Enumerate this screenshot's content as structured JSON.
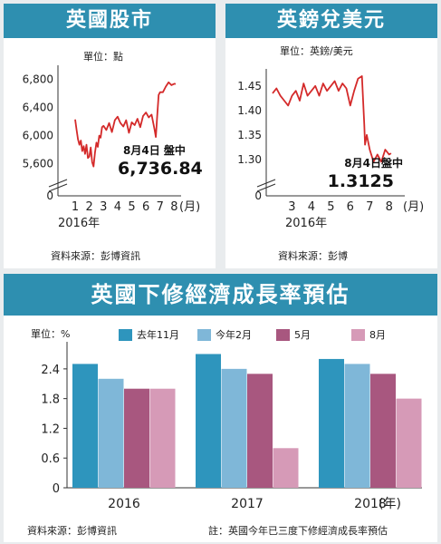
{
  "left": {
    "title": "英國股市",
    "unit": "單位：點",
    "yticks": [
      "6,800",
      "6,400",
      "6,000",
      "5,600",
      "0"
    ],
    "xticks": [
      "1",
      "2",
      "3",
      "4",
      "5",
      "6",
      "7",
      "8"
    ],
    "x_unit": "(月)",
    "year": "2016年",
    "annot_date": "8月4日  盤中",
    "annot_value": "6,736.84",
    "source": "資料來源：彭博資訊"
  },
  "right": {
    "title": "英鎊兌美元",
    "unit": "單位：英鎊/美元",
    "yticks": [
      "1.45",
      "1.40",
      "1.35",
      "1.30",
      "0"
    ],
    "xticks": [
      "3",
      "4",
      "5",
      "6",
      "7",
      "8"
    ],
    "x_unit": "(月)",
    "year": "2016年",
    "annot_date": "8月4日盤中",
    "annot_value": "1.3125",
    "source": "資料來源：彭博"
  },
  "bottom": {
    "title": "英國下修經濟成長率預估",
    "unit": "單位：%",
    "x_unit": "(年)",
    "source": "資料來源：彭博資訊",
    "note": "註：英國今年已三度下修經濟成長率預估"
  },
  "colors": {
    "header": "#2e8fb0",
    "line": "#d42a2a",
    "s1": "#2e95bd",
    "s2": "#7fb7d8",
    "s3": "#a8577f",
    "s4": "#d69ab7"
  },
  "chart_data": [
    {
      "type": "line",
      "title": "英國股市",
      "ylabel": "單位：點",
      "xlabel": "(月)",
      "ylim": [
        5400,
        6900
      ],
      "x_range": [
        1,
        8.1
      ],
      "x": [
        1.0,
        1.1,
        1.2,
        1.3,
        1.4,
        1.5,
        1.6,
        1.7,
        1.8,
        1.9,
        2.0,
        2.1,
        2.2,
        2.3,
        2.4,
        2.5,
        2.6,
        2.7,
        2.8,
        2.9,
        3.0,
        3.2,
        3.4,
        3.6,
        3.8,
        4.0,
        4.2,
        4.4,
        4.6,
        4.8,
        5.0,
        5.2,
        5.4,
        5.6,
        5.8,
        6.0,
        6.2,
        6.4,
        6.6,
        6.7,
        6.8,
        6.9,
        7.0,
        7.2,
        7.4,
        7.6,
        7.8,
        8.0,
        8.1
      ],
      "series": [
        {
          "values": [
            6230,
            6080,
            5950,
            5870,
            5930,
            5780,
            5850,
            5740,
            5870,
            5680,
            5700,
            5830,
            5620,
            5560,
            5760,
            5900,
            5840,
            6000,
            5970,
            6120,
            6140,
            6080,
            6180,
            6050,
            6220,
            6270,
            6180,
            6130,
            6220,
            6040,
            6190,
            6150,
            6240,
            6120,
            6280,
            6330,
            6260,
            6300,
            6100,
            5980,
            6300,
            6580,
            6620,
            6620,
            6700,
            6760,
            6720,
            6740,
            6737
          ]
        }
      ]
    },
    {
      "type": "line",
      "title": "英鎊兌美元",
      "ylabel": "單位：英鎊/美元",
      "xlabel": "(月)",
      "ylim": [
        1.27,
        1.47
      ],
      "x_range": [
        2,
        8.2
      ],
      "x": [
        2.0,
        2.2,
        2.4,
        2.6,
        2.8,
        3.0,
        3.2,
        3.4,
        3.6,
        3.8,
        4.0,
        4.2,
        4.4,
        4.6,
        4.8,
        5.0,
        5.2,
        5.4,
        5.6,
        5.8,
        6.0,
        6.2,
        6.4,
        6.6,
        6.72,
        6.76,
        6.85,
        7.0,
        7.2,
        7.4,
        7.6,
        7.8,
        8.0,
        8.1
      ],
      "series": [
        {
          "values": [
            1.435,
            1.445,
            1.43,
            1.42,
            1.41,
            1.43,
            1.44,
            1.42,
            1.455,
            1.43,
            1.44,
            1.45,
            1.43,
            1.455,
            1.44,
            1.45,
            1.46,
            1.44,
            1.455,
            1.445,
            1.41,
            1.44,
            1.465,
            1.47,
            1.37,
            1.33,
            1.35,
            1.32,
            1.295,
            1.31,
            1.295,
            1.32,
            1.31,
            1.3125
          ]
        }
      ]
    },
    {
      "type": "bar",
      "title": "英國下修經濟成長率預估",
      "ylabel": "單位：%",
      "xlabel": "(年)",
      "categories": [
        "2016",
        "2017",
        "2018"
      ],
      "ylim": [
        0,
        2.8
      ],
      "yticks": [
        0,
        0.6,
        1.2,
        1.8,
        2.4
      ],
      "legend_position": "top-right",
      "series": [
        {
          "name": "去年11月",
          "values": [
            2.5,
            2.7,
            2.6
          ]
        },
        {
          "name": "今年2月",
          "values": [
            2.2,
            2.4,
            2.5
          ]
        },
        {
          "name": "5月",
          "values": [
            2.0,
            2.3,
            2.3
          ]
        },
        {
          "name": "8月",
          "values": [
            2.0,
            0.8,
            1.8
          ]
        }
      ]
    }
  ]
}
